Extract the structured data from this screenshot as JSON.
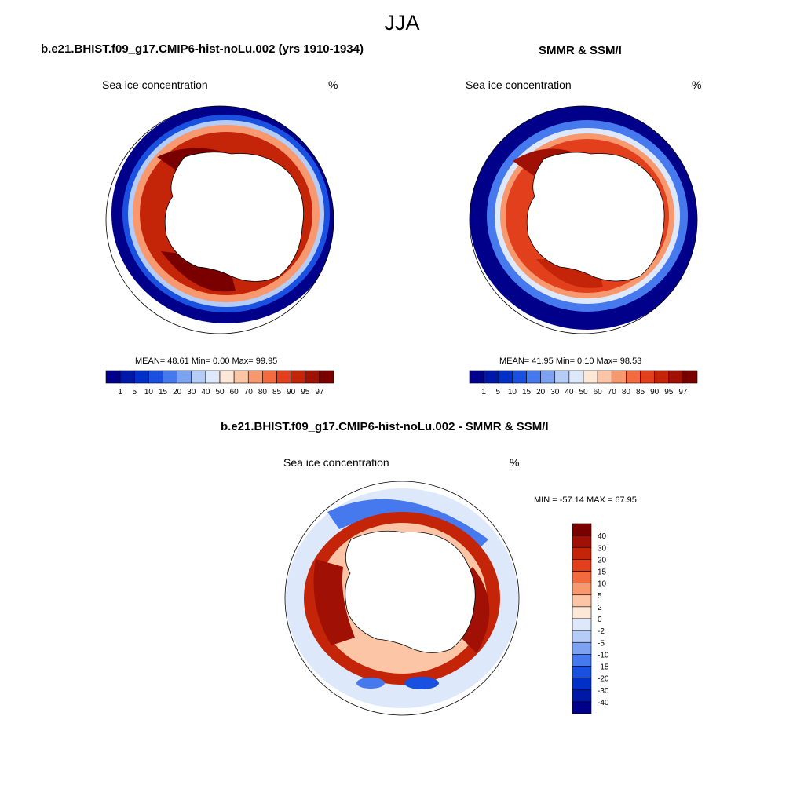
{
  "figure": {
    "title": "JJA",
    "colors": {
      "ocean_outline": "#000000",
      "land": "#ffffff"
    }
  },
  "panels": [
    {
      "title": "b.e21.BHIST.f09_g17.CMIP6-hist-noLu.002 (yrs 1910-1934)",
      "left_label": "Sea ice concentration",
      "right_label": "%",
      "stats_text": "MEAN=  48.61  Min=   0.00  Max=  99.95"
    },
    {
      "title": "SMMR & SSM/I",
      "left_label": "Sea ice concentration",
      "right_label": "%",
      "stats_text": "MEAN=  41.95  Min=   0.10  Max=  98.53"
    },
    {
      "title": "b.e21.BHIST.f09_g17.CMIP6-hist-noLu.002 - SMMR & SSM/I",
      "left_label": "Sea ice concentration",
      "right_label": "%",
      "stats_text": "MIN = -57.14 MAX =  67.95"
    }
  ],
  "colorbar_abs": {
    "labels": [
      "1",
      "5",
      "10",
      "15",
      "20",
      "30",
      "40",
      "50",
      "60",
      "70",
      "80",
      "85",
      "90",
      "95",
      "97"
    ],
    "colors": [
      "#00008b",
      "#0018a8",
      "#0030c8",
      "#1a50e0",
      "#4678ee",
      "#7ea2f2",
      "#b4ccf6",
      "#dde8fa",
      "#fde8d8",
      "#fcc6a6",
      "#f8986e",
      "#f26a3e",
      "#e2401c",
      "#c42408",
      "#a01004",
      "#7a0000"
    ]
  },
  "colorbar_diff": {
    "labels": [
      "40",
      "30",
      "20",
      "15",
      "10",
      "5",
      "2",
      "0",
      "-2",
      "-5",
      "-10",
      "-15",
      "-20",
      "-30",
      "-40"
    ],
    "colors": [
      "#7a0000",
      "#a01004",
      "#c42408",
      "#e2401c",
      "#f26a3e",
      "#f8986e",
      "#fcc6a6",
      "#fde8d8",
      "#dde8fa",
      "#b4ccf6",
      "#7ea2f2",
      "#4678ee",
      "#1a50e0",
      "#0030c8",
      "#0018a8",
      "#00008b"
    ]
  }
}
